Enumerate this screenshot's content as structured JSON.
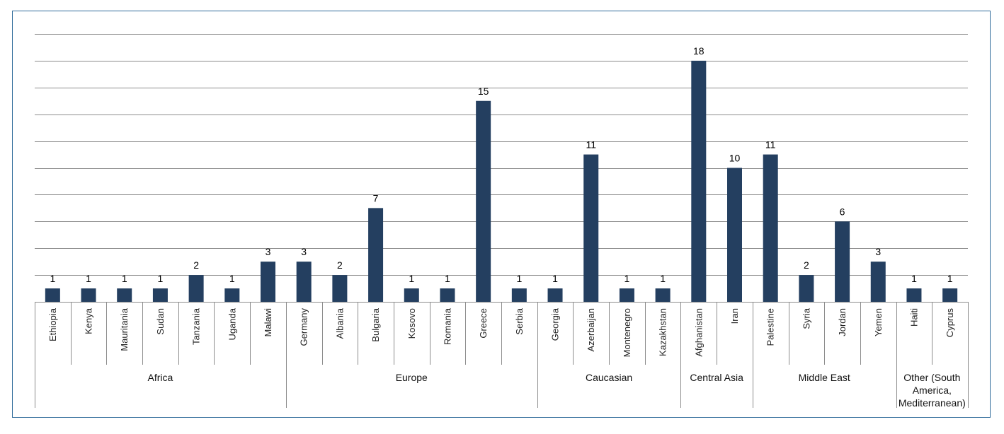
{
  "chart_data": {
    "type": "bar",
    "title": "",
    "xlabel": "",
    "ylabel": "",
    "ylim": [
      0,
      20
    ],
    "grid": true,
    "legend": "none",
    "bar_color": "#243f60",
    "categories": [
      "Ethiopia",
      "Kenya",
      "Mauritania",
      "Sudan",
      "Tanzania",
      "Uganda",
      "Malawi",
      "Germany",
      "Albania",
      "Bulgaria",
      "Kosovo",
      "Romania",
      "Greece",
      "Serbia",
      "Georgia",
      "Azerbaijan",
      "Montenegro",
      "Kazakhstan",
      "Afghanistan",
      "Iran",
      "Palestine",
      "Syria",
      "Jordan",
      "Yemen",
      "Haiti",
      "Cyprus"
    ],
    "values": [
      1,
      1,
      1,
      1,
      2,
      1,
      3,
      3,
      2,
      7,
      1,
      1,
      15,
      1,
      1,
      11,
      1,
      1,
      18,
      10,
      11,
      2,
      6,
      3,
      1,
      1
    ],
    "groups": [
      {
        "label": [
          "Africa"
        ],
        "start": 0,
        "count": 7
      },
      {
        "label": [
          "Europe"
        ],
        "start": 7,
        "count": 7
      },
      {
        "label": [
          "Caucasian"
        ],
        "start": 14,
        "count": 4
      },
      {
        "label": [
          "Central Asia"
        ],
        "start": 18,
        "count": 2
      },
      {
        "label": [
          "Middle East"
        ],
        "start": 20,
        "count": 4
      },
      {
        "label": [
          "Other (South",
          "America,",
          "Mediterranean)"
        ],
        "start": 24,
        "count": 2
      }
    ]
  }
}
